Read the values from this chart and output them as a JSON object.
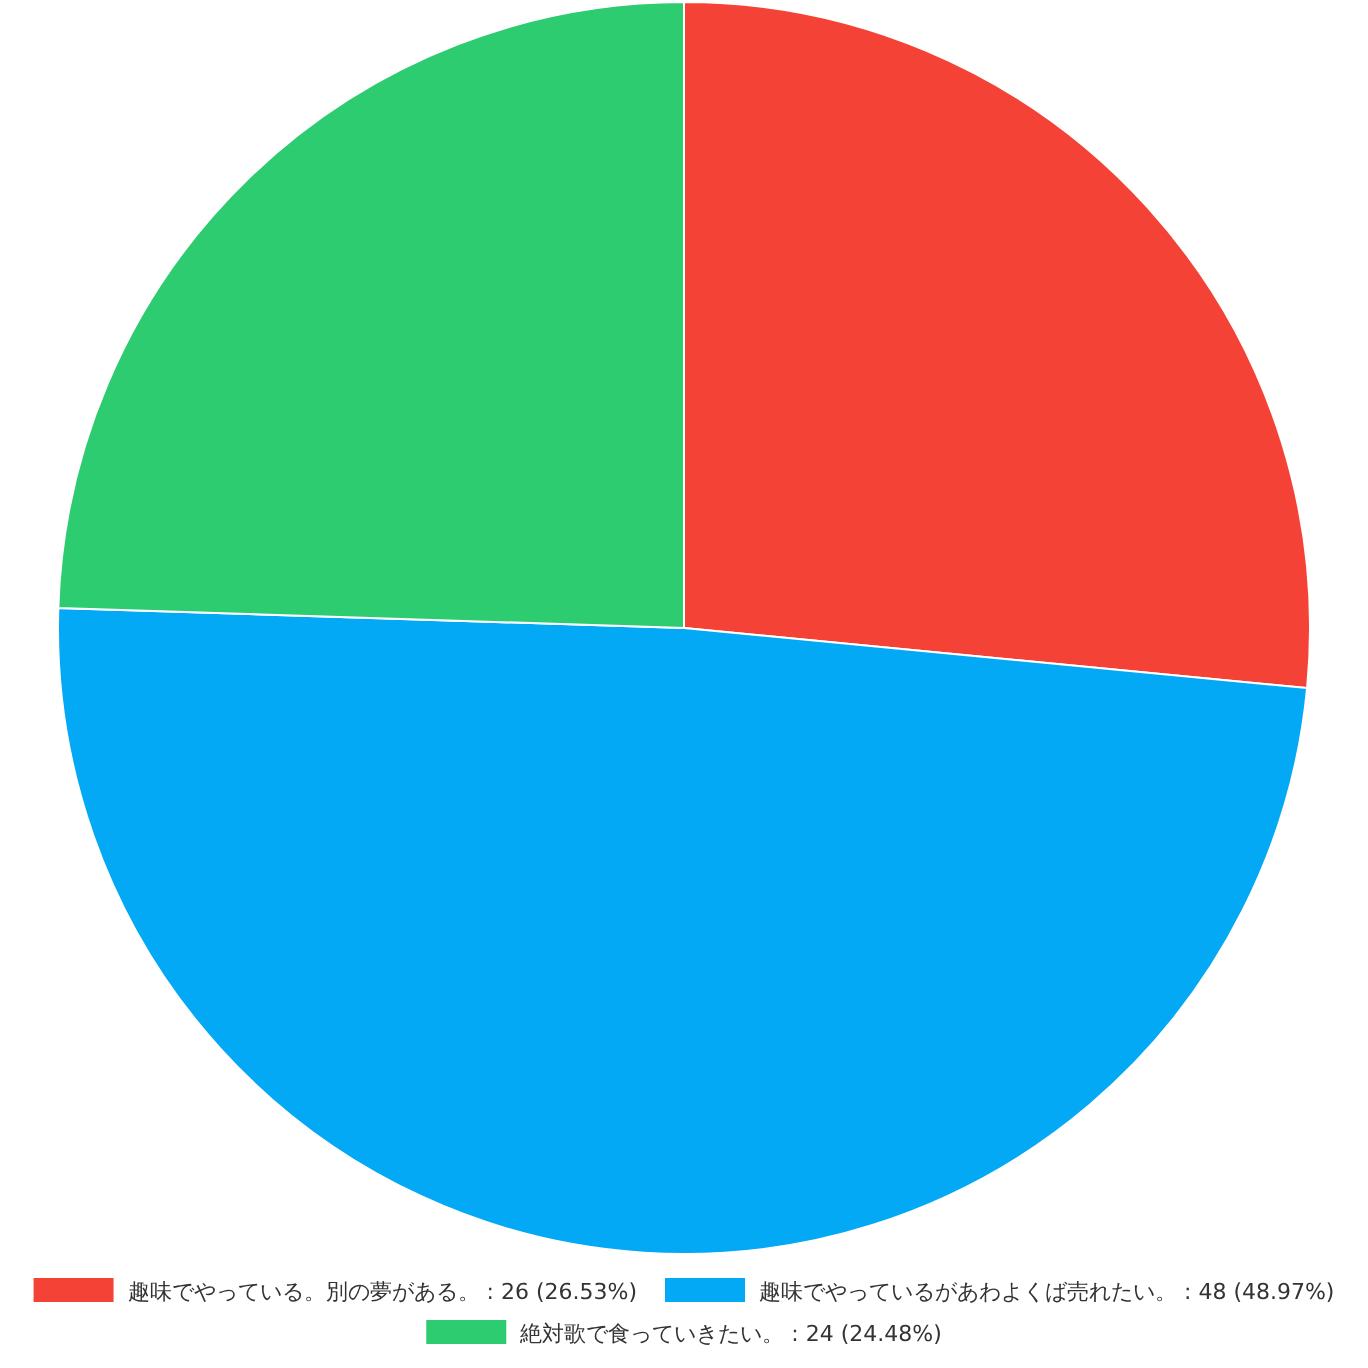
{
  "chart_data": {
    "type": "pie",
    "categories": [
      "趣味でやっている。別の夢がある。",
      "趣味でやっているがあわよくば売れたい。",
      "絶対歌で食っていきたい。"
    ],
    "values": [
      26,
      48,
      24
    ],
    "value_labels": [
      "26 (26.53%)",
      "48 (48.97%)",
      "24 (24.48%)"
    ],
    "colors": [
      "#f44336",
      "#03a9f4",
      "#2ecc71"
    ],
    "legend": "bottom"
  }
}
